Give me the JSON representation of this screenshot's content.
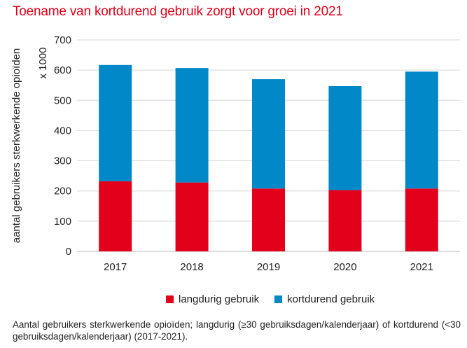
{
  "chart_data": {
    "type": "bar",
    "stacked": true,
    "title": "Toename van kortdurend gebruik zorgt voor groei in 2021",
    "xlabel": "",
    "ylabel": "aantal gebruikers sterkwerkende opioïden",
    "yunit_label": "x 1000",
    "categories": [
      "2017",
      "2018",
      "2019",
      "2020",
      "2021"
    ],
    "series": [
      {
        "name": "langdurig gebruik",
        "color": "#e2001a",
        "values": [
          232,
          228,
          208,
          203,
          208
        ]
      },
      {
        "name": "kortdurend gebruik",
        "color": "#0088c8",
        "values": [
          385,
          379,
          362,
          344,
          387
        ]
      }
    ],
    "ylim": [
      0,
      700
    ],
    "yticks": [
      "0",
      "100",
      "200",
      "300",
      "400",
      "500",
      "600",
      "700"
    ],
    "grid": true,
    "legend_position": "bottom"
  },
  "footnote": "Aantal gebruikers sterkwerkende opioïden; langdurig (≥30 gebruiksdagen/kalenderjaar) of kortdurend (<30 gebruiksdagen/kalenderjaar) (2017-2021)."
}
